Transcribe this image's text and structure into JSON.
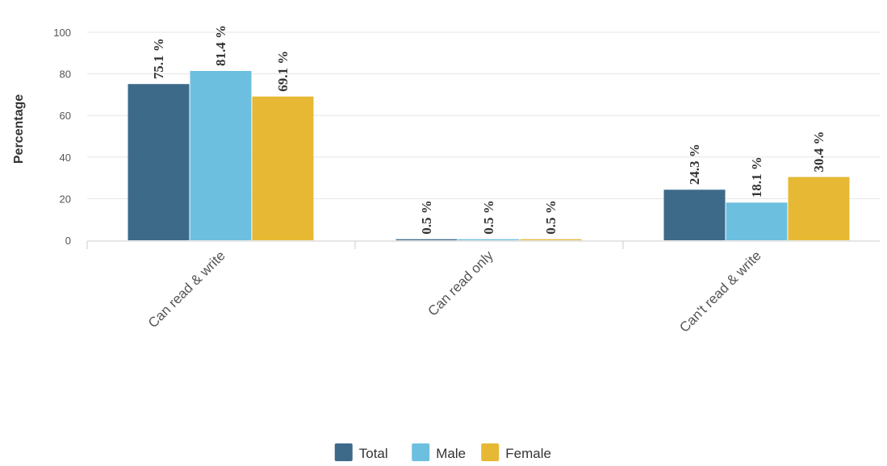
{
  "chart_data": {
    "type": "bar",
    "ylabel": "Percentage",
    "xlabel": "",
    "ylim": [
      0,
      100
    ],
    "yticks": [
      "0",
      "20",
      "40",
      "60",
      "80",
      "100"
    ],
    "categories": [
      "Can read & write",
      "Can read only",
      "Can't read & write"
    ],
    "series": [
      {
        "name": "Total",
        "color": "#3e6a8a",
        "values": [
          75.1,
          0.5,
          24.3
        ],
        "labels": [
          "75.1 %",
          "0.5 %",
          "24.3 %"
        ]
      },
      {
        "name": "Male",
        "color": "#6dbfdf",
        "values": [
          81.4,
          0.5,
          18.1
        ],
        "labels": [
          "81.4 %",
          "0.5 %",
          "18.1 %"
        ]
      },
      {
        "name": "Female",
        "color": "#e6b833",
        "values": [
          69.1,
          0.5,
          30.4
        ],
        "labels": [
          "69.1 %",
          "0.5 %",
          "30.4 %"
        ]
      }
    ],
    "grid": true,
    "legend": "bottom-center"
  }
}
